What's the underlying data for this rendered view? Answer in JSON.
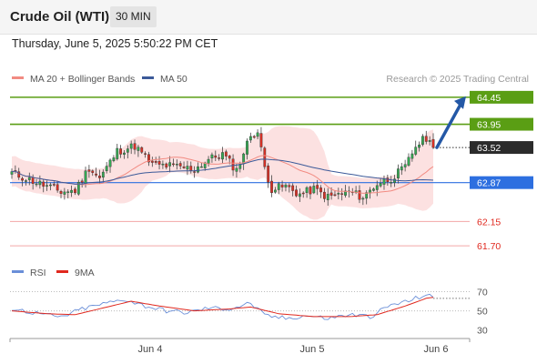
{
  "header": {
    "title": "Crude Oil (WTI)",
    "timeframe": "30 MIN",
    "datetime": "Thursday, June 5, 2025 5:50:22 PM CET",
    "copyright": "Research © 2025 Trading Central"
  },
  "chart_data": [
    {
      "type": "candlestick",
      "title": "Crude Oil (WTI)",
      "ylim": [
        61.5,
        64.65
      ],
      "x_ticks": [
        "Jun 4",
        "Jun 6",
        "Jun 5"
      ],
      "legend": [
        {
          "name": "MA 20 + Bollinger Bands",
          "color": "#f28b82"
        },
        {
          "name": "MA 50",
          "color": "#3c5a99"
        }
      ],
      "price_levels": [
        {
          "label": "64.45",
          "value": 64.45,
          "kind": "resistance",
          "color": "#5a9e14"
        },
        {
          "label": "63.95",
          "value": 63.95,
          "kind": "resistance",
          "color": "#5a9e14"
        },
        {
          "label": "63.52",
          "value": 63.52,
          "kind": "last-price",
          "color": "#333333"
        },
        {
          "label": "62.87",
          "value": 62.87,
          "kind": "pivot",
          "color": "#2d6fe0"
        },
        {
          "label": "62.15",
          "value": 62.15,
          "kind": "support",
          "color": "#e0281e"
        },
        {
          "label": "61.70",
          "value": 61.7,
          "kind": "support",
          "color": "#e0281e"
        }
      ],
      "arrow": {
        "from": 63.52,
        "to": 64.45,
        "direction": "up",
        "color": "#2458a6"
      },
      "candle_close_anchors": [
        {
          "i": 0,
          "v": 63.05
        },
        {
          "i": 8,
          "v": 62.85
        },
        {
          "i": 14,
          "v": 62.7
        },
        {
          "i": 18,
          "v": 62.72
        },
        {
          "i": 22,
          "v": 63.15
        },
        {
          "i": 25,
          "v": 62.95
        },
        {
          "i": 30,
          "v": 63.45
        },
        {
          "i": 35,
          "v": 63.55
        },
        {
          "i": 40,
          "v": 63.2
        },
        {
          "i": 45,
          "v": 63.18
        },
        {
          "i": 52,
          "v": 63.12
        },
        {
          "i": 56,
          "v": 63.3
        },
        {
          "i": 60,
          "v": 63.4
        },
        {
          "i": 64,
          "v": 63.1
        },
        {
          "i": 68,
          "v": 63.75
        },
        {
          "i": 70,
          "v": 63.8
        },
        {
          "i": 72,
          "v": 63.15
        },
        {
          "i": 74,
          "v": 62.75
        },
        {
          "i": 78,
          "v": 62.8
        },
        {
          "i": 82,
          "v": 62.65
        },
        {
          "i": 86,
          "v": 62.75
        },
        {
          "i": 90,
          "v": 62.6
        },
        {
          "i": 96,
          "v": 62.7
        },
        {
          "i": 100,
          "v": 62.6
        },
        {
          "i": 104,
          "v": 62.85
        },
        {
          "i": 108,
          "v": 62.95
        },
        {
          "i": 112,
          "v": 63.15
        },
        {
          "i": 115,
          "v": 63.55
        },
        {
          "i": 118,
          "v": 63.7
        },
        {
          "i": 120,
          "v": 63.52
        }
      ]
    },
    {
      "type": "line",
      "title": "RSI",
      "ylim": [
        25,
        78
      ],
      "y_ticks": [
        70,
        50,
        30
      ],
      "legend": [
        {
          "name": "RSI",
          "color": "#6a8fd8"
        },
        {
          "name": "9MA",
          "color": "#e0281e"
        }
      ],
      "rsi_anchors": [
        {
          "i": 0,
          "v": 52
        },
        {
          "i": 8,
          "v": 47
        },
        {
          "i": 14,
          "v": 43
        },
        {
          "i": 20,
          "v": 52
        },
        {
          "i": 26,
          "v": 57
        },
        {
          "i": 32,
          "v": 62
        },
        {
          "i": 38,
          "v": 55
        },
        {
          "i": 44,
          "v": 50
        },
        {
          "i": 50,
          "v": 48
        },
        {
          "i": 56,
          "v": 53
        },
        {
          "i": 62,
          "v": 52
        },
        {
          "i": 68,
          "v": 58
        },
        {
          "i": 72,
          "v": 45
        },
        {
          "i": 78,
          "v": 42
        },
        {
          "i": 84,
          "v": 45
        },
        {
          "i": 90,
          "v": 42
        },
        {
          "i": 96,
          "v": 46
        },
        {
          "i": 102,
          "v": 44
        },
        {
          "i": 108,
          "v": 56
        },
        {
          "i": 113,
          "v": 60
        },
        {
          "i": 118,
          "v": 67
        },
        {
          "i": 120,
          "v": 63
        }
      ],
      "ma9_anchors": [
        {
          "i": 0,
          "v": 50
        },
        {
          "i": 10,
          "v": 47
        },
        {
          "i": 18,
          "v": 46
        },
        {
          "i": 26,
          "v": 53
        },
        {
          "i": 34,
          "v": 60
        },
        {
          "i": 42,
          "v": 55
        },
        {
          "i": 52,
          "v": 50
        },
        {
          "i": 62,
          "v": 52
        },
        {
          "i": 68,
          "v": 54
        },
        {
          "i": 76,
          "v": 47
        },
        {
          "i": 86,
          "v": 44
        },
        {
          "i": 96,
          "v": 44
        },
        {
          "i": 104,
          "v": 46
        },
        {
          "i": 112,
          "v": 55
        },
        {
          "i": 118,
          "v": 63
        },
        {
          "i": 120,
          "v": 64
        }
      ]
    }
  ]
}
